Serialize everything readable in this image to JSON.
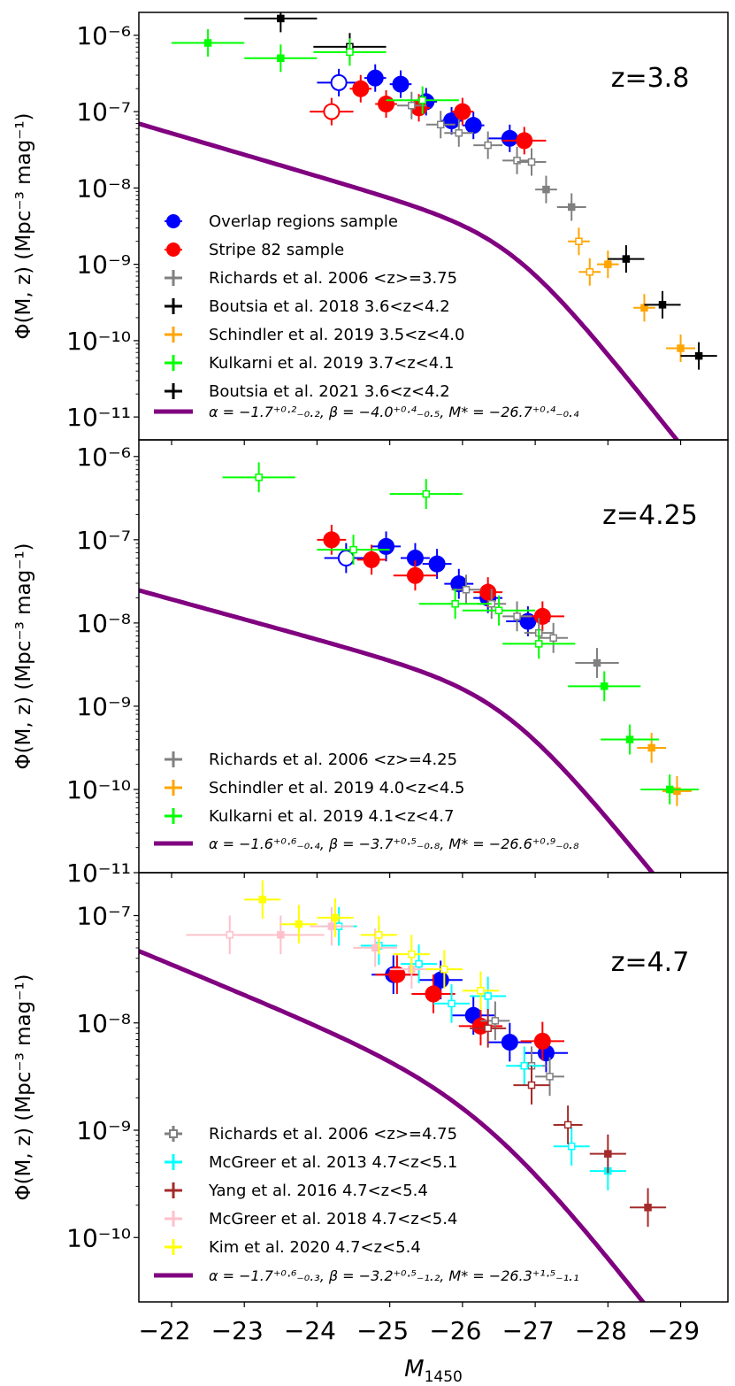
{
  "figure": {
    "xlabel": "M",
    "xlabel_sub": "1450",
    "ylabel": "Φ(M, z) (Mpc⁻³ mag⁻¹)",
    "x_ticks": [
      -22,
      -23,
      -24,
      -25,
      -26,
      -27,
      -28,
      -29
    ],
    "x_tick_labels": [
      "−22",
      "−23",
      "−24",
      "−25",
      "−26",
      "−27",
      "−28",
      "−29"
    ],
    "xlim": [
      -21.55,
      -29.65
    ]
  },
  "colors": {
    "overlap": "#0000ff",
    "stripe82": "#ff0000",
    "richards": "#808080",
    "boutsia": "#000000",
    "schindler": "#ffa500",
    "kulkarni": "#00ff00",
    "mcgreer13": "#00ffff",
    "yang": "#a52a2a",
    "mcgreer18": "#ffc0cb",
    "kim": "#ffff00",
    "fit": "#800080"
  },
  "chart_data": [
    {
      "type": "scatter",
      "title": "z=3.8",
      "ylim_log10": [
        -11.3,
        -5.7
      ],
      "yticks_log10": [
        -6,
        -7,
        -8,
        -9,
        -10,
        -11
      ],
      "ytick_labels": [
        "10⁻⁶",
        "10⁻⁷",
        "10⁻⁸",
        "10⁻⁹",
        "10⁻¹⁰",
        "10⁻¹¹"
      ],
      "fit": {
        "label": "α = −1.7⁺⁰·²₋₀.₂, β = −4.0⁺⁰·⁴₋₀.₅, M* = −26.7⁺⁰·⁴₋₀.₄",
        "alpha": -1.7,
        "beta": -4.0,
        "mstar": -26.7,
        "logphi": -8.6
      },
      "series": [
        {
          "name": "Overlap regions sample",
          "color": "#0000ff",
          "marker": "circle",
          "points": [
            {
              "x": -24.3,
              "y": -6.62,
              "xe": 0.3,
              "open": true
            },
            {
              "x": -24.8,
              "y": -6.56,
              "xe": 0.15
            },
            {
              "x": -25.15,
              "y": -6.64,
              "xe": 0.15
            },
            {
              "x": -25.5,
              "y": -6.87,
              "xe": 0.15
            },
            {
              "x": -25.85,
              "y": -7.12,
              "xe": 0.15
            },
            {
              "x": -26.15,
              "y": -7.18,
              "xe": 0.15
            },
            {
              "x": -26.65,
              "y": -7.35,
              "xe": 0.3
            }
          ]
        },
        {
          "name": "Stripe 82 sample",
          "color": "#ff0000",
          "marker": "circle",
          "points": [
            {
              "x": -24.2,
              "y": -7.0,
              "xe": 0.3,
              "open": true
            },
            {
              "x": -24.6,
              "y": -6.7,
              "xe": 0.15
            },
            {
              "x": -24.95,
              "y": -6.9,
              "xe": 0.15
            },
            {
              "x": -25.4,
              "y": -6.95,
              "xe": 0.15
            },
            {
              "x": -26.0,
              "y": -7.0,
              "xe": 0.15
            },
            {
              "x": -26.85,
              "y": -7.38,
              "xe": 0.3
            }
          ]
        },
        {
          "name": "Richards et al. 2006 <z>=3.75",
          "color": "#808080",
          "marker": "square",
          "points": [
            {
              "x": -25.3,
              "y": -6.92,
              "xe": 0.2,
              "open": true
            },
            {
              "x": -25.7,
              "y": -7.17,
              "xe": 0.2,
              "open": true
            },
            {
              "x": -25.95,
              "y": -7.28,
              "xe": 0.2,
              "open": true
            },
            {
              "x": -26.35,
              "y": -7.44,
              "xe": 0.2,
              "open": true
            },
            {
              "x": -26.75,
              "y": -7.64,
              "xe": 0.2,
              "open": true
            },
            {
              "x": -26.95,
              "y": -7.66,
              "xe": 0.2,
              "open": true
            },
            {
              "x": -27.15,
              "y": -8.02,
              "xe": 0.15
            },
            {
              "x": -27.5,
              "y": -8.25,
              "xe": 0.2
            }
          ]
        },
        {
          "name": "Boutsia et al. 2018 3.6<z<4.2",
          "color": "#000000",
          "marker": "square",
          "points": [
            {
              "x": -24.45,
              "y": -6.15,
              "xe": 0.5,
              "open": true
            }
          ]
        },
        {
          "name": "Schindler et al. 2019 3.5<z<4.0",
          "color": "#ffa500",
          "marker": "square",
          "points": [
            {
              "x": -27.6,
              "y": -8.7,
              "xe": 0.15,
              "open": true
            },
            {
              "x": -27.75,
              "y": -9.1,
              "xe": 0.15,
              "open": true
            },
            {
              "x": -28.0,
              "y": -9.0,
              "xe": 0.15
            },
            {
              "x": -28.5,
              "y": -9.57,
              "xe": 0.15
            },
            {
              "x": -29.0,
              "y": -10.1,
              "xe": 0.2
            }
          ]
        },
        {
          "name": "Kulkarni et al. 2019 3.7<z<4.1",
          "color": "#00ff00",
          "marker": "square",
          "points": [
            {
              "x": -22.5,
              "y": -6.1,
              "xe": 0.5
            },
            {
              "x": -23.5,
              "y": -6.3,
              "xe": 0.5
            },
            {
              "x": -24.45,
              "y": -6.22,
              "xe": 0.5,
              "open": true
            },
            {
              "x": -25.45,
              "y": -6.85,
              "xe": 0.5,
              "open": true
            }
          ]
        },
        {
          "name": "Boutsia et al. 2021 3.6<z<4.2",
          "color": "#000000",
          "marker": "square",
          "points": [
            {
              "x": -23.5,
              "y": -5.78,
              "xe": 0.5
            },
            {
              "x": -28.25,
              "y": -8.93,
              "xe": 0.25
            },
            {
              "x": -28.75,
              "y": -9.53,
              "xe": 0.25
            },
            {
              "x": -29.25,
              "y": -10.2,
              "xe": 0.25
            }
          ]
        }
      ],
      "legend": [
        {
          "label": "Overlap regions sample",
          "color": "#0000ff",
          "kind": "circle"
        },
        {
          "label": "Stripe 82 sample",
          "color": "#ff0000",
          "kind": "circle"
        },
        {
          "label": "Richards et al. 2006 <z>=3.75",
          "color": "#808080",
          "kind": "cross"
        },
        {
          "label": "Boutsia et al. 2018 3.6<z<4.2",
          "color": "#000000",
          "kind": "cross"
        },
        {
          "label": "Schindler et al. 2019 3.5<z<4.0",
          "color": "#ffa500",
          "kind": "cross"
        },
        {
          "label": "Kulkarni et al. 2019 3.7<z<4.1",
          "color": "#00ff00",
          "kind": "cross"
        },
        {
          "label": "Boutsia et al. 2021 3.6<z<4.2",
          "color": "#000000",
          "kind": "cross"
        }
      ]
    },
    {
      "type": "scatter",
      "title": "z=4.25",
      "ylim_log10": [
        -11.0,
        -5.8
      ],
      "yticks_log10": [
        -6,
        -7,
        -8,
        -9,
        -10,
        -11
      ],
      "ytick_labels": [
        "10⁻⁶",
        "10⁻⁷",
        "10⁻⁸",
        "10⁻⁹",
        "10⁻¹⁰",
        "10⁻¹¹"
      ],
      "fit": {
        "label": "α = −1.6⁺⁰·⁶₋₀.₄, β = −3.7⁺⁰·⁵₋₀.₈, M* = −26.6⁺⁰·⁹₋₀.₈",
        "alpha": -1.6,
        "beta": -3.7,
        "mstar": -26.6,
        "logphi": -8.82
      },
      "series": [
        {
          "name": "Overlap regions sample",
          "color": "#0000ff",
          "marker": "circle",
          "points": [
            {
              "x": -24.4,
              "y": -7.22,
              "xe": 0.3,
              "open": true
            },
            {
              "x": -24.95,
              "y": -7.08,
              "xe": 0.2
            },
            {
              "x": -25.35,
              "y": -7.22,
              "xe": 0.2
            },
            {
              "x": -25.65,
              "y": -7.29,
              "xe": 0.2
            },
            {
              "x": -25.95,
              "y": -7.53,
              "xe": 0.2
            },
            {
              "x": -26.35,
              "y": -7.7,
              "xe": 0.2
            },
            {
              "x": -26.9,
              "y": -7.98,
              "xe": 0.3
            }
          ]
        },
        {
          "name": "Stripe 82 sample",
          "color": "#ff0000",
          "marker": "circle",
          "points": [
            {
              "x": -24.2,
              "y": -7.0,
              "xe": 0.2
            },
            {
              "x": -24.75,
              "y": -7.24,
              "xe": 0.2
            },
            {
              "x": -25.35,
              "y": -7.43,
              "xe": 0.3
            },
            {
              "x": -26.35,
              "y": -7.63,
              "xe": 0.2
            },
            {
              "x": -27.1,
              "y": -7.92,
              "xe": 0.3
            }
          ]
        },
        {
          "name": "Richards et al. 2006 <z>=4.25",
          "color": "#808080",
          "marker": "square",
          "points": [
            {
              "x": -26.05,
              "y": -7.6,
              "xe": 0.2,
              "open": true
            },
            {
              "x": -26.4,
              "y": -7.77,
              "xe": 0.2,
              "open": true
            },
            {
              "x": -26.75,
              "y": -7.92,
              "xe": 0.2,
              "open": true
            },
            {
              "x": -27.05,
              "y": -8.12,
              "xe": 0.2,
              "open": true
            },
            {
              "x": -27.25,
              "y": -8.18,
              "xe": 0.2,
              "open": true
            },
            {
              "x": -27.85,
              "y": -8.48,
              "xe": 0.3
            }
          ]
        },
        {
          "name": "Schindler et al. 2019 4.0<z<4.5",
          "color": "#ffa500",
          "marker": "square",
          "points": [
            {
              "x": -28.6,
              "y": -9.5,
              "xe": 0.2
            },
            {
              "x": -28.95,
              "y": -10.02,
              "xe": 0.2
            }
          ]
        },
        {
          "name": "Kulkarni et al. 2019 4.1<z<4.7",
          "color": "#00ff00",
          "marker": "square",
          "points": [
            {
              "x": -23.2,
              "y": -6.25,
              "xe": 0.5,
              "open": true
            },
            {
              "x": -25.5,
              "y": -6.45,
              "xe": 0.5,
              "open": true
            },
            {
              "x": -24.5,
              "y": -7.12,
              "xe": 0.5,
              "open": true
            },
            {
              "x": -25.9,
              "y": -7.77,
              "xe": 0.5,
              "open": true
            },
            {
              "x": -26.5,
              "y": -7.85,
              "xe": 0.5,
              "open": true
            },
            {
              "x": -27.05,
              "y": -8.25,
              "xe": 0.5,
              "open": true
            },
            {
              "x": -27.95,
              "y": -8.76,
              "xe": 0.5
            },
            {
              "x": -28.3,
              "y": -9.4,
              "xe": 0.4
            },
            {
              "x": -28.85,
              "y": -10.0,
              "xe": 0.4
            }
          ]
        }
      ],
      "legend": [
        {
          "label": "Richards et al. 2006 <z>=4.25",
          "color": "#808080",
          "kind": "cross"
        },
        {
          "label": "Schindler et al. 2019 4.0<z<4.5",
          "color": "#ffa500",
          "kind": "cross"
        },
        {
          "label": "Kulkarni et al. 2019 4.1<z<4.7",
          "color": "#00ff00",
          "kind": "cross"
        }
      ]
    },
    {
      "type": "scatter",
      "title": "z=4.7",
      "ylim_log10": [
        -10.6,
        -6.6
      ],
      "yticks_log10": [
        -7,
        -8,
        -9,
        -10
      ],
      "ytick_labels": [
        "10⁻⁷",
        "10⁻⁸",
        "10⁻⁹",
        "10⁻¹⁰"
      ],
      "fit": {
        "label": "α = −1.7⁺⁰·⁶₋₀.₃, β = −3.2⁺⁰·⁵₋₁.₂, M* = −26.3⁺¹·⁵₋₁.₁",
        "alpha": -1.7,
        "beta": -3.2,
        "mstar": -26.3,
        "logphi": -8.66
      },
      "series": [
        {
          "name": "Overlap regions sample",
          "color": "#0000ff",
          "marker": "circle",
          "points": [
            {
              "x": -25.05,
              "y": -7.55,
              "xe": 0.3
            },
            {
              "x": -25.7,
              "y": -7.6,
              "xe": 0.3
            },
            {
              "x": -26.15,
              "y": -7.93,
              "xe": 0.3
            },
            {
              "x": -26.65,
              "y": -8.18,
              "xe": 0.3
            },
            {
              "x": -27.15,
              "y": -8.28,
              "xe": 0.3
            }
          ]
        },
        {
          "name": "Stripe 82 sample",
          "color": "#ff0000",
          "marker": "circle",
          "points": [
            {
              "x": -25.1,
              "y": -7.55,
              "xe": 0.3
            },
            {
              "x": -25.6,
              "y": -7.73,
              "xe": 0.3
            },
            {
              "x": -26.25,
              "y": -8.03,
              "xe": 0.3
            },
            {
              "x": -27.1,
              "y": -8.17,
              "xe": 0.3
            }
          ]
        },
        {
          "name": "Richards et al. 2006 <z>=4.75",
          "color": "#808080",
          "marker": "square",
          "points": [
            {
              "x": -26.45,
              "y": -7.98,
              "xe": 0.2,
              "open": true
            },
            {
              "x": -26.95,
              "y": -8.4,
              "xe": 0.2,
              "open": true
            },
            {
              "x": -27.2,
              "y": -8.5,
              "xe": 0.2,
              "open": true
            }
          ]
        },
        {
          "name": "McGreer et al. 2013 4.7<z<5.1",
          "color": "#00ffff",
          "marker": "square",
          "points": [
            {
              "x": -24.3,
              "y": -7.1,
              "xe": 0.25,
              "open": true
            },
            {
              "x": -24.85,
              "y": -7.28,
              "xe": 0.25,
              "open": true
            },
            {
              "x": -25.4,
              "y": -7.45,
              "xe": 0.25,
              "open": true
            },
            {
              "x": -25.85,
              "y": -7.82,
              "xe": 0.25,
              "open": true
            },
            {
              "x": -26.35,
              "y": -7.75,
              "xe": 0.25,
              "open": true
            },
            {
              "x": -26.85,
              "y": -8.4,
              "xe": 0.25,
              "open": true
            },
            {
              "x": -27.5,
              "y": -9.15,
              "xe": 0.25,
              "open": true
            },
            {
              "x": -28.0,
              "y": -9.38,
              "xe": 0.25
            }
          ]
        },
        {
          "name": "Yang et al. 2016 4.7<z<5.4",
          "color": "#a52a2a",
          "marker": "square",
          "points": [
            {
              "x": -26.35,
              "y": -8.05,
              "xe": 0.25,
              "open": true
            },
            {
              "x": -26.95,
              "y": -8.58,
              "xe": 0.25,
              "open": true
            },
            {
              "x": -27.45,
              "y": -8.95,
              "xe": 0.2,
              "open": true
            },
            {
              "x": -28.0,
              "y": -9.22,
              "xe": 0.25
            },
            {
              "x": -28.55,
              "y": -9.72,
              "xe": 0.25
            }
          ]
        },
        {
          "name": "McGreer et al. 2018 4.7<z<5.4",
          "color": "#ffc0cb",
          "marker": "square",
          "points": [
            {
              "x": -22.8,
              "y": -7.18,
              "xe": 0.6,
              "open": true
            },
            {
              "x": -23.5,
              "y": -7.18,
              "xe": 0.6
            },
            {
              "x": -24.2,
              "y": -7.1,
              "xe": 0.3
            },
            {
              "x": -24.8,
              "y": -7.3,
              "xe": 0.3
            },
            {
              "x": -25.3,
              "y": -7.5,
              "xe": 0.3
            }
          ]
        },
        {
          "name": "Kim et al. 2020 4.7<z<5.4",
          "color": "#ffff00",
          "marker": "square",
          "points": [
            {
              "x": -23.25,
              "y": -6.85,
              "xe": 0.25
            },
            {
              "x": -23.75,
              "y": -7.08,
              "xe": 0.25
            },
            {
              "x": -24.25,
              "y": -7.02,
              "xe": 0.25
            },
            {
              "x": -24.85,
              "y": -7.18,
              "xe": 0.25,
              "open": true
            },
            {
              "x": -25.3,
              "y": -7.36,
              "xe": 0.25,
              "open": true
            },
            {
              "x": -25.75,
              "y": -7.5,
              "xe": 0.25,
              "open": true
            },
            {
              "x": -26.25,
              "y": -7.7,
              "xe": 0.25,
              "open": true
            }
          ]
        }
      ],
      "legend": [
        {
          "label": "Richards et al. 2006 <z>=4.75",
          "color": "#808080",
          "kind": "opensquare"
        },
        {
          "label": "McGreer et al. 2013 4.7<z<5.1",
          "color": "#00ffff",
          "kind": "cross"
        },
        {
          "label": "Yang et al. 2016 4.7<z<5.4",
          "color": "#a52a2a",
          "kind": "cross"
        },
        {
          "label": "McGreer et al. 2018 4.7<z<5.4",
          "color": "#ffc0cb",
          "kind": "cross"
        },
        {
          "label": "Kim et al. 2020 4.7<z<5.4",
          "color": "#ffff00",
          "kind": "cross"
        }
      ]
    }
  ]
}
